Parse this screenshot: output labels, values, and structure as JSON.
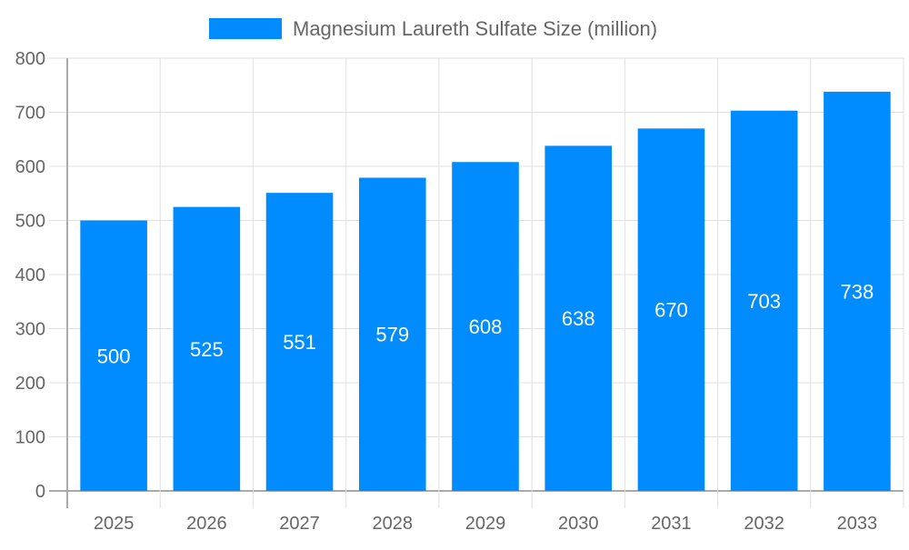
{
  "chart_data": {
    "type": "bar",
    "title": "",
    "xlabel": "",
    "ylabel": "",
    "categories": [
      "2025",
      "2026",
      "2027",
      "2028",
      "2029",
      "2030",
      "2031",
      "2032",
      "2033"
    ],
    "series": [
      {
        "name": "Magnesium Laureth Sulfate Size (million)",
        "values": [
          500,
          525,
          551,
          579,
          608,
          638,
          670,
          703,
          738
        ],
        "color": "#008CFF"
      }
    ],
    "ylim": [
      0,
      800
    ],
    "yticks": [
      0,
      100,
      200,
      300,
      400,
      500,
      600,
      700,
      800
    ],
    "grid": true,
    "legend": "top-center",
    "data_labels": true
  }
}
